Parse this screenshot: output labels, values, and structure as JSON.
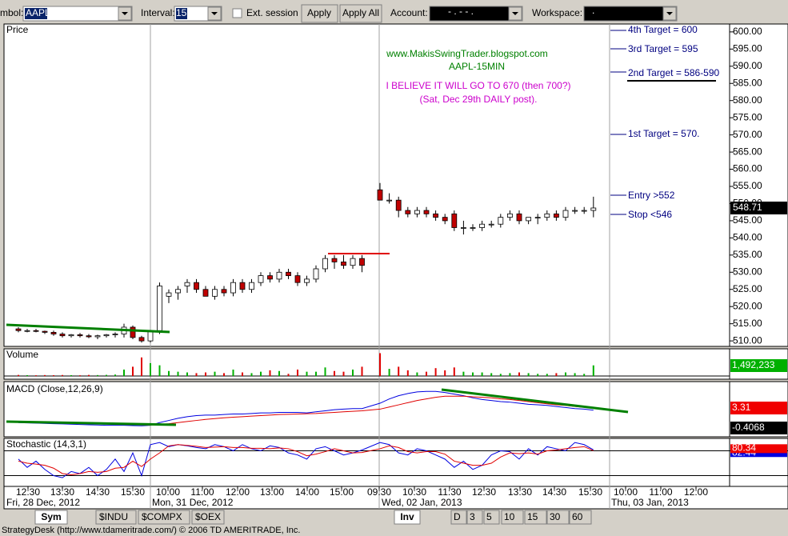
{
  "toolbar": {
    "symbol_label": "mbol:",
    "symbol": "AAPL",
    "interval_label": "Interval:",
    "interval": "15",
    "ext_session": "Ext. session",
    "apply": "Apply",
    "apply_all": "Apply All",
    "account_label": "Account:",
    "account": "-  .  -  -  .",
    "workspace_label": "Workspace:",
    "workspace": "."
  },
  "price_panel": {
    "title": "Price",
    "ylim": [
      508.4,
      602.3
    ],
    "yticks": [
      {
        "value": 600,
        "label": "600.00"
      },
      {
        "value": 595,
        "label": "595.00"
      },
      {
        "value": 590,
        "label": "590.00"
      },
      {
        "value": 585,
        "label": "585.00"
      },
      {
        "value": 580,
        "label": "580.00"
      },
      {
        "value": 575,
        "label": "575.00"
      },
      {
        "value": 570,
        "label": "570.00"
      },
      {
        "value": 565,
        "label": "565.00"
      },
      {
        "value": 560,
        "label": "560.00"
      },
      {
        "value": 555,
        "label": "555.00"
      },
      {
        "value": 550,
        "label": "550.00"
      },
      {
        "value": 545,
        "label": "545.00"
      },
      {
        "value": 540,
        "label": "540.00"
      },
      {
        "value": 535,
        "label": "535.00"
      },
      {
        "value": 530,
        "label": "530.00"
      },
      {
        "value": 525,
        "label": "525.00"
      },
      {
        "value": 520,
        "label": "520.00"
      },
      {
        "value": 515,
        "label": "515.00"
      },
      {
        "value": 510,
        "label": "510.00"
      }
    ],
    "open": [
      513.5,
      513,
      513,
      512.8,
      512.5,
      512,
      511.5,
      511.8,
      511.5,
      511.2,
      511.5,
      511.8,
      512,
      514,
      511,
      510,
      513,
      523,
      524,
      526,
      527,
      525,
      523,
      525,
      524,
      527,
      525,
      527,
      529,
      528,
      530,
      529,
      527,
      528,
      531,
      534,
      533,
      532,
      534,
      554,
      551,
      551,
      548,
      547,
      548,
      547,
      546,
      547,
      543,
      543,
      543,
      544,
      544,
      546,
      547,
      545,
      546,
      546,
      547,
      546,
      548,
      548,
      548
    ],
    "high": [
      514,
      513.5,
      513.5,
      513,
      513,
      512.5,
      512,
      512.3,
      512,
      511.8,
      512,
      512.5,
      515,
      514.5,
      511.5,
      513,
      527,
      525,
      526,
      528,
      528,
      526,
      526,
      526,
      528,
      528,
      528,
      530,
      530,
      531,
      531,
      530,
      529,
      532,
      535,
      535,
      535,
      535,
      535,
      556,
      553,
      552,
      549,
      549,
      549,
      548,
      547,
      548,
      545,
      544,
      545,
      545,
      547,
      548,
      548,
      546,
      547,
      548,
      548,
      549,
      549,
      549,
      552
    ],
    "low": [
      512.5,
      512.5,
      512.5,
      512,
      511.5,
      511,
      511,
      511,
      510.8,
      510.5,
      511,
      511,
      511,
      510.5,
      509.5,
      509.5,
      512,
      521,
      522,
      524,
      524,
      523,
      522,
      523,
      523,
      524,
      524,
      526,
      527,
      527,
      528,
      526,
      526,
      527,
      530,
      531,
      531,
      531,
      530,
      551,
      550,
      546,
      546,
      546,
      546,
      545,
      544,
      542,
      541,
      542,
      542,
      543,
      543,
      545,
      544,
      544,
      544,
      545,
      545,
      545,
      547,
      547,
      546
    ],
    "close": [
      513,
      513,
      512.8,
      512.5,
      512,
      511.5,
      511.8,
      511.5,
      511.2,
      511.5,
      511.8,
      512,
      514,
      511,
      510,
      513,
      526,
      524,
      525,
      527,
      525,
      523,
      525,
      524,
      527,
      525,
      527,
      529,
      528,
      530,
      529,
      527,
      528,
      531,
      534,
      533,
      532,
      534,
      532,
      551,
      551,
      548,
      547,
      548,
      547,
      546,
      545,
      543,
      543,
      543,
      544,
      544,
      546,
      547,
      545,
      546,
      546,
      547,
      546,
      548,
      548,
      548,
      548.71
    ],
    "annotations": {
      "site": "www.MakisSwingTrader.blogspot.com",
      "symbol": "AAPL-15MIN",
      "belief": "I BELIEVE IT WILL GO TO 670 (then 700?)",
      "post": "(Sat, Dec 29th DAILY post).",
      "targets": [
        "4th Target = 600",
        "3rd Target = 595",
        "2nd Target = 586-590",
        "1st Target = 570.",
        "Entry >552",
        "Stop <546"
      ]
    }
  },
  "volume": {
    "title": "Volume",
    "ylim": [
      0,
      3700000
    ],
    "values": [
      150000,
      120000,
      100000,
      130000,
      110000,
      140000,
      120000,
      100000,
      150000,
      130000,
      160000,
      200000,
      900000,
      1300000,
      2600000,
      1800000,
      1500000,
      700000,
      600000,
      500000,
      400000,
      500000,
      600000,
      400000,
      900000,
      500000,
      400000,
      600000,
      800000,
      700000,
      300000,
      900000,
      600000,
      600000,
      1200000,
      700000,
      600000,
      900000,
      1300000,
      3200000,
      1000000,
      1300000,
      800000,
      500000,
      600000,
      1100000,
      800000,
      1200000,
      600000,
      500000,
      500000,
      400000,
      300000,
      400000,
      500000,
      400000,
      300000,
      300000,
      400000,
      500000,
      400000,
      300000,
      1492233
    ],
    "last_value_label": "1,492,233"
  },
  "macd": {
    "title": "MACD (Close,12,26,9)",
    "ylim": [
      -1.89,
      8.07
    ],
    "macd": [
      0.6,
      0.55,
      0.5,
      0.45,
      0.4,
      0.35,
      0.3,
      0.25,
      0.2,
      0.15,
      0.1,
      0.1,
      0.1,
      0.05,
      0,
      0.1,
      0.6,
      1.0,
      1.4,
      1.7,
      1.9,
      2.0,
      2.0,
      2.1,
      2.2,
      2.2,
      2.3,
      2.4,
      2.4,
      2.5,
      2.5,
      2.5,
      2.4,
      2.6,
      2.8,
      3.0,
      3.1,
      3.2,
      3.2,
      4.2,
      5.0,
      5.6,
      6.0,
      6.3,
      6.4,
      6.4,
      6.2,
      5.9,
      5.6,
      5.2,
      4.9,
      4.7,
      4.5,
      4.4,
      4.2,
      4.0,
      3.9,
      3.8,
      3.6,
      3.4,
      3.2,
      3.1,
      2.9
    ],
    "signal": [
      0.7,
      0.68,
      0.65,
      0.62,
      0.58,
      0.54,
      0.5,
      0.46,
      0.42,
      0.38,
      0.34,
      0.3,
      0.26,
      0.22,
      0.18,
      0.16,
      0.25,
      0.4,
      0.6,
      0.8,
      1.0,
      1.2,
      1.35,
      1.5,
      1.6,
      1.7,
      1.8,
      1.9,
      2.0,
      2.1,
      2.15,
      2.2,
      2.25,
      2.3,
      2.4,
      2.5,
      2.6,
      2.7,
      2.8,
      3.1,
      3.5,
      3.9,
      4.3,
      4.7,
      5.0,
      5.3,
      5.5,
      5.5,
      5.5,
      5.4,
      5.3,
      5.2,
      5.0,
      4.9,
      4.7,
      4.5,
      4.3,
      4.1,
      3.9,
      3.8,
      3.6,
      3.45,
      3.31
    ],
    "histogram_last": -0.4068
  },
  "stochastic": {
    "title": "Stochastic (14,3,1)",
    "ylim": [
      -6,
      110
    ],
    "levels": [
      20,
      80
    ],
    "k": [
      60,
      40,
      55,
      35,
      20,
      15,
      30,
      25,
      40,
      20,
      35,
      60,
      30,
      75,
      20,
      95,
      100,
      90,
      95,
      92,
      88,
      85,
      95,
      90,
      80,
      95,
      85,
      80,
      92,
      88,
      75,
      70,
      60,
      85,
      90,
      80,
      70,
      75,
      82,
      100,
      95,
      75,
      70,
      85,
      80,
      70,
      60,
      40,
      55,
      35,
      45,
      70,
      80,
      78,
      60,
      85,
      70,
      90,
      85,
      80,
      100,
      95,
      82.44
    ],
    "d": [
      55,
      50,
      48,
      45,
      38,
      25,
      22,
      25,
      30,
      28,
      30,
      38,
      40,
      55,
      42,
      60,
      75,
      92,
      95,
      93,
      91,
      88,
      89,
      90,
      88,
      88,
      86,
      86,
      85,
      87,
      85,
      78,
      68,
      72,
      78,
      85,
      80,
      75,
      76,
      85,
      92,
      88,
      78,
      75,
      78,
      78,
      72,
      55,
      50,
      45,
      45,
      50,
      65,
      75,
      73,
      75,
      72,
      80,
      82,
      85,
      88,
      90,
      80.34
    ]
  },
  "time_axis": {
    "times": [
      "12:30",
      "13:30",
      "14:30",
      "15:30",
      "10:00",
      "11:00",
      "12:00",
      "13:00",
      "14:00",
      "15:00",
      "09:30",
      "10:30",
      "11:30",
      "12:30",
      "13:30",
      "14:30",
      "15:30",
      "10:00",
      "11:00",
      "12:00"
    ],
    "dates": [
      "Fri, 28 Dec, 2012",
      "Mon, 31 Dec, 2012",
      "Wed, 02 Jan, 2013",
      "Thu, 03 Jan, 2013"
    ]
  },
  "bottom_bar": {
    "sym": "Sym",
    "tabs": [
      "$INDU",
      "$COMPX",
      "$OEX"
    ],
    "inv": "Inv",
    "periods": [
      "D",
      "3",
      "5",
      "10",
      "15",
      "30",
      "60"
    ]
  },
  "footer": "StrategyDesk (http://www.tdameritrade.com/) © 2006 TD AMERITRADE, Inc."
}
